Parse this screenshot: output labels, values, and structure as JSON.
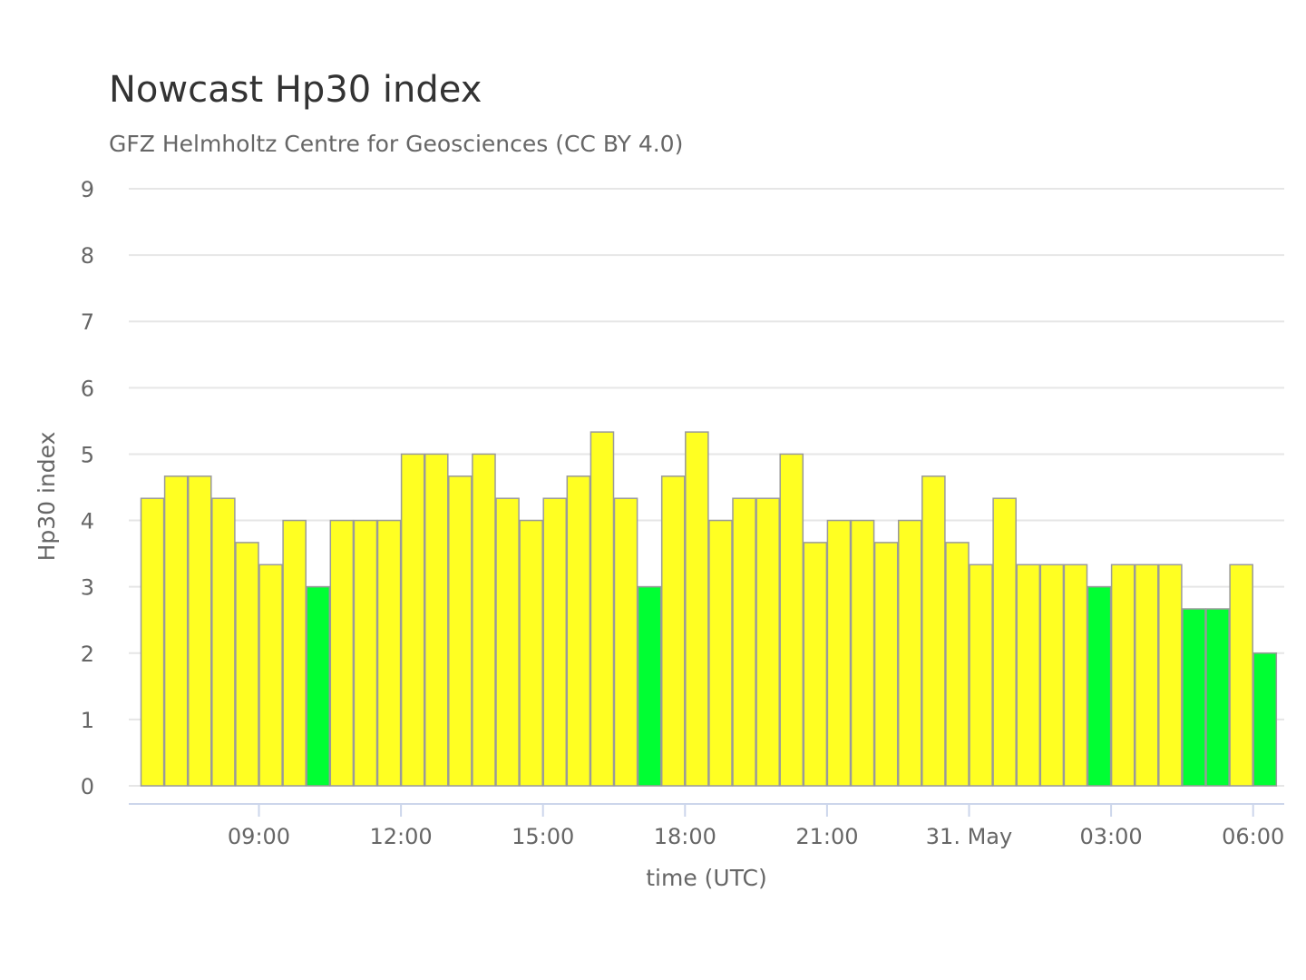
{
  "chart_data": {
    "type": "bar",
    "title": "Nowcast Hp30 index",
    "subtitle": "GFZ Helmholtz Centre for Geosciences (CC BY 4.0)",
    "xlabel": "time (UTC)",
    "ylabel": "Hp30 index",
    "ylim": [
      0,
      9
    ],
    "yticks": [
      "0",
      "1",
      "2",
      "3",
      "4",
      "5",
      "6",
      "7",
      "8",
      "9"
    ],
    "xticks": [
      {
        "label": "09:00",
        "hour": 9
      },
      {
        "label": "12:00",
        "hour": 12
      },
      {
        "label": "15:00",
        "hour": 15
      },
      {
        "label": "18:00",
        "hour": 18
      },
      {
        "label": "21:00",
        "hour": 21
      },
      {
        "label": "31. May",
        "hour": 24
      },
      {
        "label": "03:00",
        "hour": 27
      },
      {
        "label": "06:00",
        "hour": 30
      }
    ],
    "x_start_hour": 6.5,
    "interval_hours": 0.5,
    "values": [
      4.333,
      4.667,
      4.667,
      4.333,
      3.667,
      3.333,
      4.0,
      3.0,
      4.0,
      4.0,
      4.0,
      5.0,
      5.0,
      4.667,
      5.0,
      4.333,
      4.0,
      4.333,
      4.667,
      5.333,
      4.333,
      3.0,
      4.667,
      5.333,
      4.0,
      4.333,
      4.333,
      5.0,
      3.667,
      4.0,
      4.0,
      3.667,
      4.0,
      4.667,
      3.667,
      3.333,
      4.333,
      3.333,
      3.333,
      3.333,
      3.0,
      3.333,
      3.333,
      3.333,
      2.667,
      2.667,
      3.333,
      2.0
    ],
    "colors": {
      "low": "#00ff33",
      "high": "#ffff22",
      "threshold": 3.01,
      "grid": "#e6e6e6",
      "axis": "#ccd6eb"
    },
    "grid": true,
    "legend": "none"
  }
}
